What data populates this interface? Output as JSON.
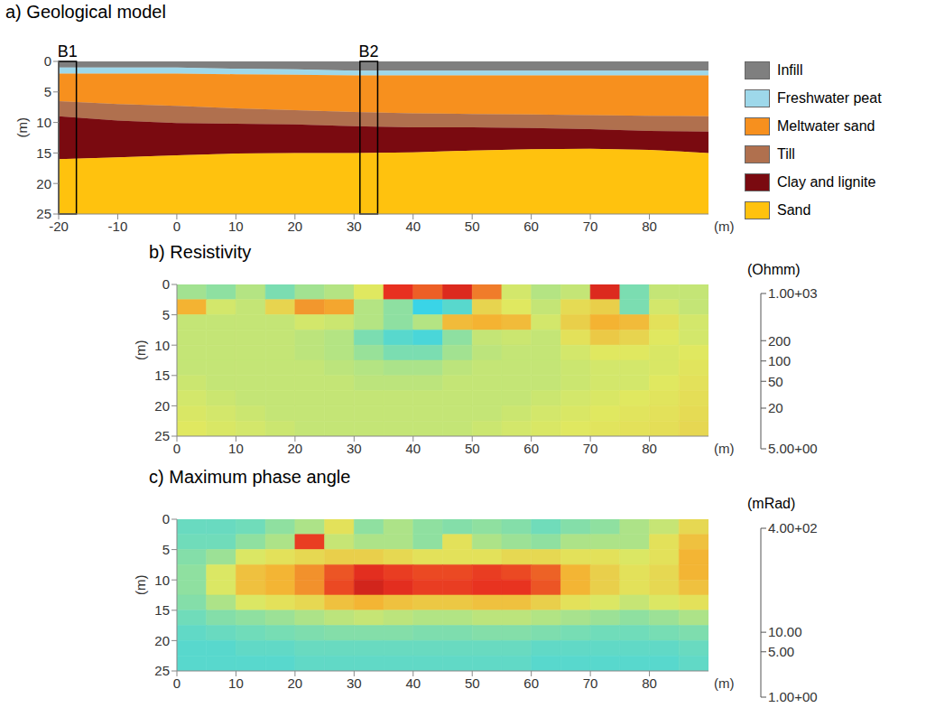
{
  "chart_data": [
    {
      "type": "area",
      "title": "a) Geological model",
      "stacked": true,
      "xlabel": "(m)",
      "ylabel": "(m)",
      "x": [
        -20,
        -10,
        0,
        10,
        20,
        30,
        40,
        50,
        60,
        70,
        80,
        90
      ],
      "series": [
        {
          "name": "Infill",
          "color": "#7f7f7f",
          "values": [
            1,
            1,
            1,
            1.2,
            1.3,
            1.5,
            1.5,
            1.5,
            1.5,
            1.5,
            1.5,
            1.5
          ]
        },
        {
          "name": "Freshwater peat",
          "color": "#9ed8ea",
          "values": [
            1,
            1,
            1,
            0.9,
            0.9,
            0.8,
            0.8,
            0.8,
            0.8,
            0.8,
            0.8,
            0.8
          ]
        },
        {
          "name": "Meltwater sand",
          "color": "#f7901e",
          "values": [
            4.5,
            5,
            5.3,
            5.6,
            5.8,
            6,
            6.2,
            6.3,
            6.4,
            6.5,
            6.6,
            6.7
          ]
        },
        {
          "name": "Till",
          "color": "#b0704e",
          "values": [
            2.5,
            2.7,
            2.8,
            2.5,
            2.3,
            2.3,
            2.3,
            2.2,
            2.2,
            2.3,
            2.5,
            2.5
          ]
        },
        {
          "name": "Clay and lignite",
          "color": "#7a0a10",
          "values": [
            7,
            6,
            5.3,
            4.9,
            4.7,
            4.4,
            4.1,
            3.8,
            3.5,
            3.2,
            3.1,
            3.5
          ]
        },
        {
          "name": "Sand",
          "color": "#ffc20e",
          "values": [
            9,
            9.3,
            9.6,
            9.9,
            10,
            10,
            10.1,
            10.4,
            10.6,
            10.7,
            10.5,
            10
          ]
        }
      ],
      "xlim": [
        -20,
        90
      ],
      "xticks": [
        -20,
        -10,
        0,
        10,
        20,
        30,
        40,
        50,
        60,
        70,
        80
      ],
      "ylim": [
        25,
        0
      ],
      "yticks": [
        0,
        5,
        10,
        15,
        20,
        25
      ],
      "legend": "right",
      "boreholes": [
        {
          "label": "B1",
          "x": [
            -20,
            -17
          ]
        },
        {
          "label": "B2",
          "x": [
            31,
            34
          ]
        }
      ]
    },
    {
      "type": "heatmap",
      "title": "b) Resistivity",
      "xlabel": "(m)",
      "ylabel": "(m)",
      "xlim": [
        0,
        90
      ],
      "xticks": [
        0,
        10,
        20,
        30,
        40,
        50,
        60,
        70,
        80
      ],
      "ylim": [
        25,
        0
      ],
      "yticks": [
        0,
        5,
        10,
        15,
        20,
        25
      ],
      "x_edges": [
        0,
        5,
        10,
        15,
        20,
        25,
        30,
        35,
        40,
        45,
        50,
        55,
        60,
        65,
        70,
        75,
        80,
        85,
        90
      ],
      "y_edges": [
        0,
        2.5,
        5,
        7.5,
        10,
        12.5,
        15,
        17.5,
        20,
        22.5,
        25
      ],
      "cells": [
        [
          80,
          70,
          90,
          60,
          80,
          90,
          120,
          450,
          350,
          500,
          300,
          110,
          90,
          100,
          500,
          60,
          100,
          100
        ],
        [
          220,
          110,
          100,
          150,
          260,
          240,
          90,
          70,
          35,
          45,
          150,
          120,
          100,
          140,
          160,
          60,
          110,
          100
        ],
        [
          100,
          100,
          100,
          100,
          110,
          105,
          90,
          70,
          90,
          200,
          220,
          200,
          110,
          160,
          220,
          200,
          130,
          110
        ],
        [
          100,
          100,
          100,
          100,
          95,
          90,
          60,
          45,
          40,
          70,
          100,
          105,
          100,
          130,
          170,
          150,
          120,
          110
        ],
        [
          100,
          100,
          100,
          100,
          95,
          90,
          75,
          60,
          60,
          80,
          95,
          100,
          100,
          110,
          120,
          120,
          115,
          120
        ],
        [
          100,
          100,
          100,
          100,
          100,
          95,
          90,
          85,
          85,
          95,
          100,
          100,
          100,
          105,
          110,
          110,
          115,
          125
        ],
        [
          105,
          100,
          100,
          100,
          100,
          100,
          95,
          95,
          95,
          100,
          100,
          100,
          100,
          105,
          110,
          110,
          120,
          130
        ],
        [
          110,
          105,
          100,
          100,
          100,
          100,
          100,
          100,
          100,
          100,
          100,
          100,
          105,
          110,
          115,
          120,
          125,
          135
        ],
        [
          115,
          110,
          105,
          100,
          100,
          100,
          100,
          100,
          100,
          100,
          100,
          105,
          110,
          115,
          120,
          125,
          130,
          140
        ],
        [
          120,
          115,
          110,
          105,
          100,
          100,
          100,
          100,
          100,
          100,
          105,
          110,
          115,
          120,
          125,
          130,
          135,
          145
        ]
      ],
      "colorbar": {
        "label": "(Ohmm)",
        "range": [
          5,
          1000
        ],
        "log": true,
        "ticks": [
          {
            "value": 5,
            "label": "5.00+00"
          },
          20,
          50,
          100,
          200,
          {
            "value": 1000,
            "label": "1.00+03"
          }
        ]
      }
    },
    {
      "type": "heatmap",
      "title": "c) Maximum phase angle",
      "xlabel": "(m)",
      "ylabel": "(m)",
      "xlim": [
        0,
        90
      ],
      "xticks": [
        0,
        10,
        20,
        30,
        40,
        50,
        60,
        70,
        80
      ],
      "ylim": [
        25,
        0
      ],
      "yticks": [
        0,
        5,
        10,
        15,
        20,
        25
      ],
      "x_edges": [
        0,
        5,
        10,
        15,
        20,
        25,
        30,
        35,
        40,
        45,
        50,
        55,
        60,
        65,
        70,
        75,
        80,
        85,
        90
      ],
      "y_edges": [
        0,
        2.5,
        5,
        7.5,
        10,
        12.5,
        15,
        17.5,
        20,
        22.5,
        25
      ],
      "cells": [
        [
          14,
          14,
          15,
          20,
          25,
          40,
          20,
          25,
          20,
          18,
          20,
          18,
          15,
          18,
          20,
          25,
          30,
          45
        ],
        [
          15,
          15,
          20,
          25,
          150,
          30,
          25,
          25,
          20,
          40,
          25,
          22,
          20,
          25,
          25,
          25,
          40,
          60
        ],
        [
          18,
          22,
          35,
          40,
          45,
          50,
          50,
          45,
          40,
          40,
          40,
          45,
          45,
          40,
          40,
          35,
          40,
          70
        ],
        [
          20,
          35,
          60,
          70,
          90,
          130,
          170,
          150,
          140,
          140,
          150,
          140,
          120,
          70,
          50,
          40,
          45,
          70
        ],
        [
          20,
          35,
          60,
          70,
          90,
          140,
          200,
          170,
          150,
          150,
          160,
          160,
          130,
          70,
          50,
          40,
          45,
          60
        ],
        [
          18,
          25,
          35,
          40,
          45,
          60,
          70,
          60,
          55,
          55,
          60,
          60,
          50,
          40,
          35,
          30,
          35,
          40
        ],
        [
          15,
          18,
          20,
          22,
          25,
          28,
          30,
          28,
          26,
          26,
          28,
          28,
          26,
          24,
          22,
          20,
          22,
          25
        ],
        [
          13,
          14,
          15,
          16,
          17,
          18,
          18,
          18,
          17,
          17,
          18,
          18,
          17,
          16,
          15,
          15,
          16,
          17
        ],
        [
          12,
          12,
          13,
          13,
          14,
          14,
          14,
          14,
          14,
          14,
          14,
          14,
          13,
          13,
          13,
          13,
          13,
          14
        ],
        [
          12,
          12,
          12,
          12,
          13,
          13,
          13,
          13,
          13,
          13,
          13,
          13,
          12,
          12,
          12,
          12,
          12,
          13
        ]
      ],
      "colorbar": {
        "label": "(mRad)",
        "range": [
          1,
          400
        ],
        "log": true,
        "ticks": [
          {
            "value": 1,
            "label": "1.00+00"
          },
          {
            "value": 5,
            "label": "5.00"
          },
          {
            "value": 10,
            "label": "10.00"
          },
          {
            "value": 400,
            "label": "4.00+02"
          }
        ]
      }
    }
  ]
}
